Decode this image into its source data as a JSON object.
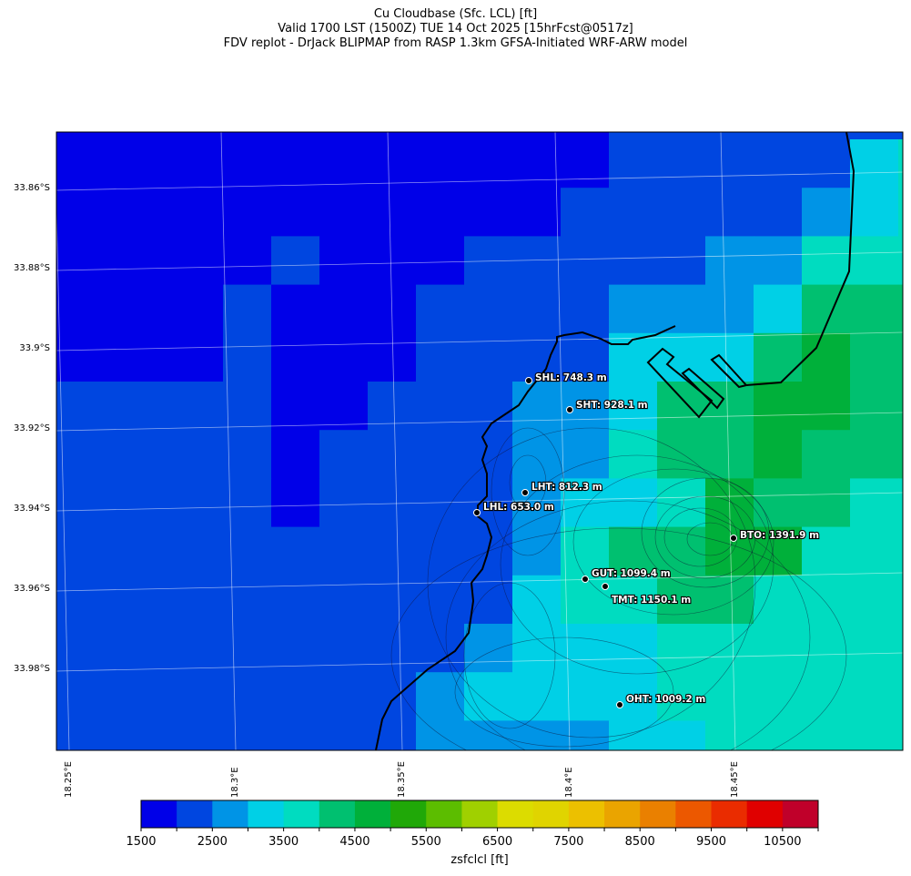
{
  "title": {
    "line1": "Cu Cloudbase (Sfc. LCL) [ft]",
    "line2": "Valid 1700 LST (1500Z) TUE 14 Oct 2025 [15hrFcst@0517z]",
    "line3": "FDV replot - DrJack BLIPMAP from RASP 1.3km GFSA-Initiated WRF-ARW model"
  },
  "chart_data": {
    "type": "heatmap",
    "title": "Cu Cloudbase (Sfc. LCL) [ft]",
    "lat_labels": [
      "33.86°S",
      "33.88°S",
      "33.9°S",
      "33.92°S",
      "33.94°S",
      "33.96°S",
      "33.98°S"
    ],
    "lon_labels": [
      "18.25°E",
      "18.3°E",
      "18.35°E",
      "18.4°E",
      "18.45°E"
    ],
    "colorbar": {
      "label": "zsfclcl [ft]",
      "min": 1500,
      "max": 11000,
      "step": 500,
      "tick_labels": [
        "1500",
        "2500",
        "3500",
        "4500",
        "5500",
        "6500",
        "7500",
        "8500",
        "9500",
        "10500"
      ],
      "colors": [
        "#0000e8",
        "#0046e0",
        "#0094e6",
        "#00d0e6",
        "#00dcc0",
        "#00c070",
        "#00b03a",
        "#20a808",
        "#5cbd00",
        "#a0d000",
        "#dcdc00",
        "#e0d400",
        "#ecc000",
        "#eaa400",
        "#ea8000",
        "#ec5800",
        "#ea2c00",
        "#e00000",
        "#c0002a"
      ]
    },
    "grid_levels": [
      [
        0,
        0,
        0,
        0,
        0,
        0,
        0,
        0,
        0,
        0,
        0,
        0,
        1,
        1,
        1,
        1,
        1,
        1,
        1
      ],
      [
        0,
        0,
        0,
        0,
        0,
        0,
        0,
        0,
        0,
        0,
        0,
        0,
        1,
        1,
        1,
        1,
        1,
        3,
        4
      ],
      [
        0,
        0,
        0,
        0,
        0,
        0,
        0,
        0,
        0,
        0,
        0,
        1,
        1,
        1,
        1,
        1,
        2,
        3,
        4
      ],
      [
        0,
        0,
        0,
        0,
        0,
        1,
        0,
        0,
        0,
        1,
        1,
        1,
        1,
        1,
        2,
        2,
        4,
        4,
        4
      ],
      [
        0,
        0,
        0,
        0,
        1,
        0,
        0,
        0,
        1,
        1,
        1,
        1,
        2,
        2,
        2,
        3,
        5,
        5,
        5
      ],
      [
        0,
        0,
        0,
        0,
        1,
        0,
        0,
        0,
        1,
        1,
        1,
        1,
        3,
        3,
        3,
        5,
        6,
        5,
        5
      ],
      [
        1,
        1,
        1,
        1,
        1,
        0,
        0,
        1,
        1,
        1,
        2,
        2,
        3,
        5,
        5,
        6,
        6,
        5,
        5
      ],
      [
        1,
        1,
        1,
        1,
        1,
        0,
        1,
        1,
        1,
        1,
        2,
        2,
        4,
        5,
        5,
        6,
        5,
        5,
        5
      ],
      [
        1,
        1,
        1,
        1,
        1,
        0,
        1,
        1,
        1,
        1,
        2,
        3,
        3,
        4,
        6,
        5,
        5,
        4,
        4
      ],
      [
        1,
        1,
        1,
        1,
        1,
        1,
        1,
        1,
        1,
        1,
        2,
        4,
        5,
        5,
        6,
        6,
        4,
        4,
        4
      ],
      [
        1,
        1,
        1,
        1,
        1,
        1,
        1,
        1,
        1,
        1,
        3,
        4,
        4,
        5,
        5,
        4,
        4,
        4,
        4
      ],
      [
        1,
        1,
        1,
        1,
        1,
        1,
        1,
        1,
        1,
        2,
        3,
        3,
        3,
        4,
        4,
        4,
        4,
        4,
        4
      ],
      [
        1,
        1,
        1,
        1,
        1,
        1,
        1,
        1,
        2,
        3,
        3,
        3,
        3,
        4,
        4,
        4,
        4,
        4,
        4
      ],
      [
        1,
        1,
        1,
        1,
        1,
        1,
        1,
        1,
        2,
        2,
        2,
        2,
        3,
        3,
        4,
        4,
        4,
        4,
        4
      ]
    ],
    "stations": [
      {
        "label": "SHL: 748.3 m"
      },
      {
        "label": "SHT: 928.1 m"
      },
      {
        "label": "LHT: 812.3 m"
      },
      {
        "label": "LHL: 653.0 m"
      },
      {
        "label": "BTO: 1391.9 m"
      },
      {
        "label": "GUT: 1099.4 m"
      },
      {
        "label": "TMT: 1150.1 m"
      },
      {
        "label": "OHT: 1009.2 m"
      }
    ]
  }
}
